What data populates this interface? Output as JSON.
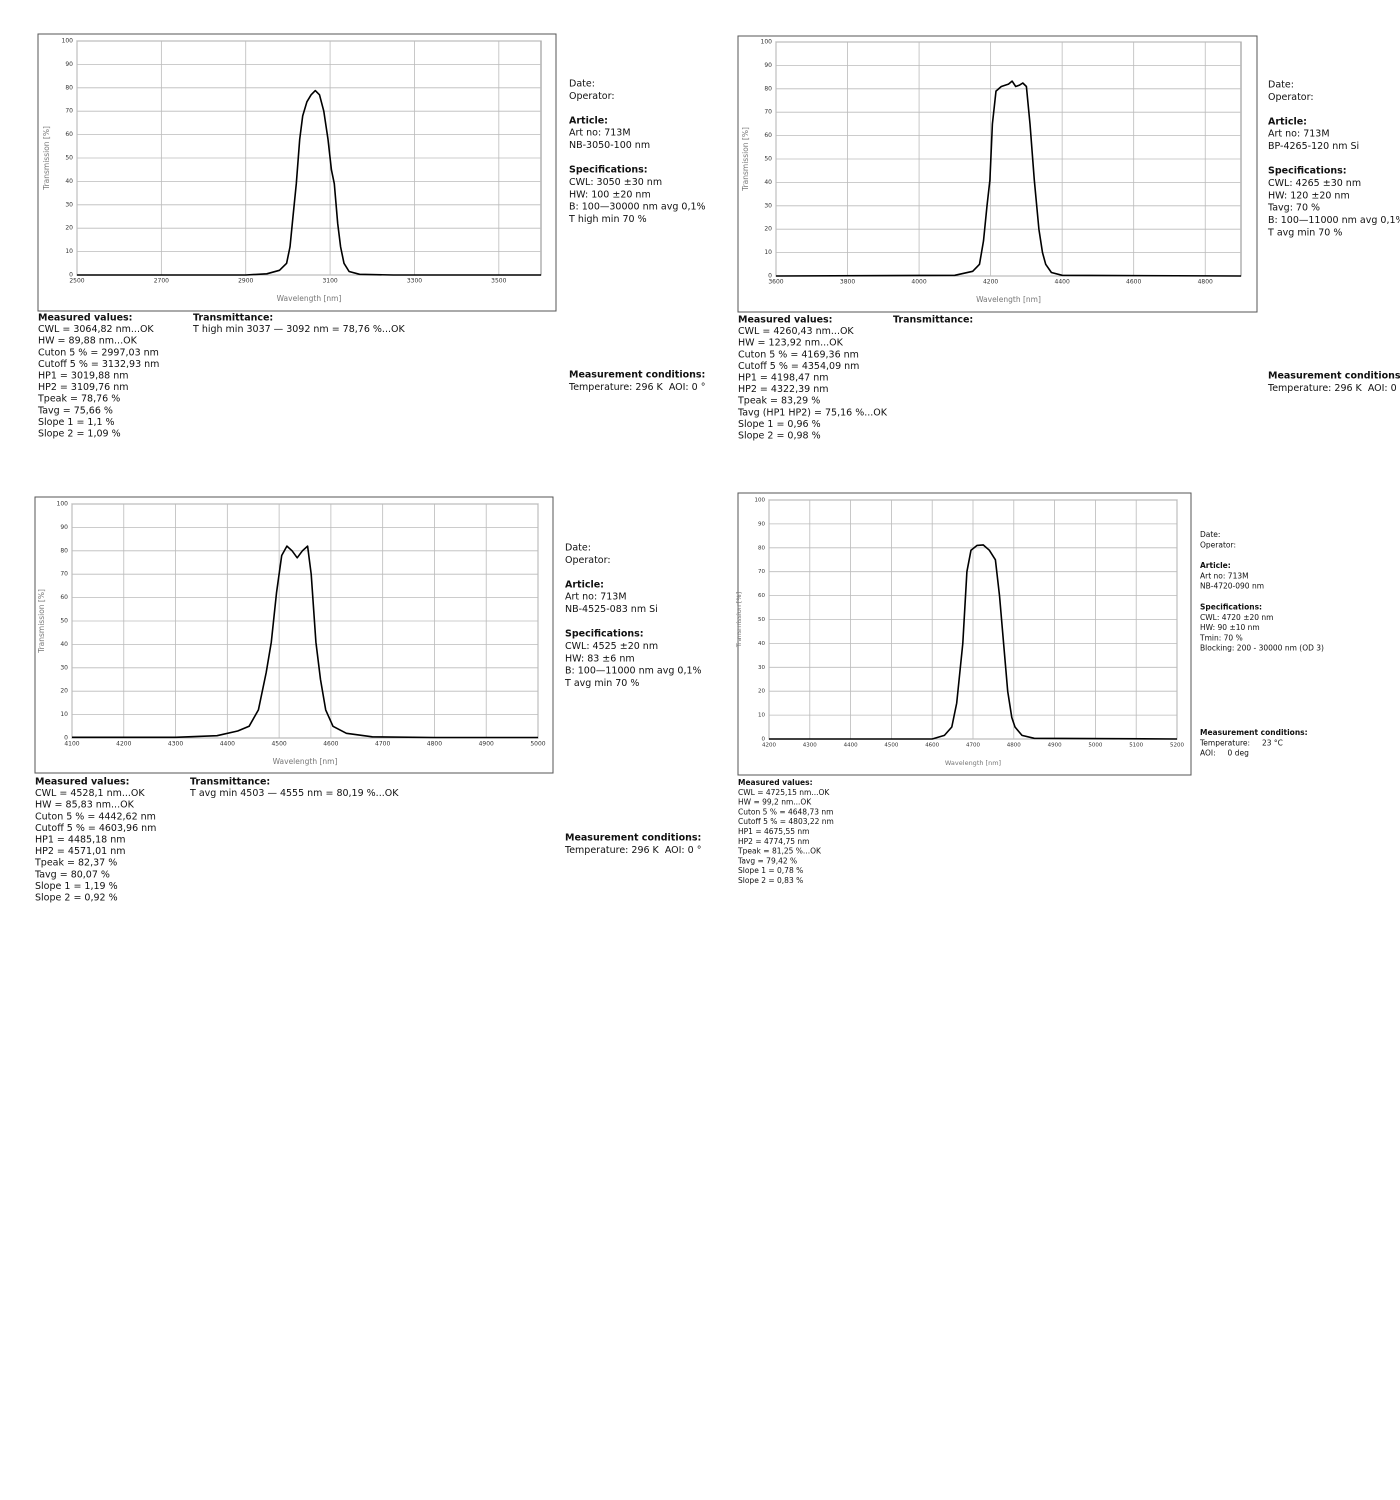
{
  "chart_data": [
    {
      "type": "line",
      "xlabel": "Wavelength [nm]",
      "ylabel": "Transmission [%]",
      "x": [
        2500,
        2900,
        2950,
        2980,
        2997,
        3005,
        3012,
        3020,
        3028,
        3035,
        3045,
        3055,
        3065,
        3075,
        3085,
        3095,
        3103,
        3110,
        3118,
        3125,
        3133,
        3145,
        3170,
        3250,
        3600
      ],
      "values": [
        0,
        0,
        0.5,
        2,
        5,
        12,
        25,
        39,
        58,
        68,
        74,
        77,
        78.8,
        77,
        70,
        58,
        45,
        39,
        22,
        12,
        5,
        1.5,
        0.3,
        0,
        0
      ],
      "color": "#000000",
      "xlim": [
        2500,
        3600
      ],
      "xticks": [
        2500,
        2700,
        2900,
        3100,
        3300,
        3500
      ],
      "ylim": [
        0,
        100
      ],
      "yticks": [
        0,
        10,
        20,
        30,
        40,
        50,
        60,
        70,
        80,
        90,
        100
      ],
      "grid": true
    },
    {
      "type": "line",
      "xlabel": "Wavelength [nm]",
      "ylabel": "Transmission [%]",
      "x": [
        3600,
        4100,
        4150,
        4169,
        4180,
        4190,
        4198,
        4205,
        4215,
        4230,
        4250,
        4260,
        4270,
        4280,
        4290,
        4300,
        4310,
        4322,
        4335,
        4345,
        4354,
        4370,
        4400,
        4900
      ],
      "values": [
        0,
        0.3,
        2,
        5,
        15,
        30,
        41,
        65,
        79,
        81,
        82,
        83.3,
        81,
        81.5,
        82.5,
        81,
        65,
        41,
        20,
        10,
        5,
        1.5,
        0.3,
        0
      ],
      "color": "#000000",
      "xlim": [
        3600,
        4900
      ],
      "xticks": [
        3600,
        3800,
        4000,
        4200,
        4400,
        4600,
        4800
      ],
      "ylim": [
        0,
        100
      ],
      "yticks": [
        0,
        10,
        20,
        30,
        40,
        50,
        60,
        70,
        80,
        90,
        100
      ],
      "grid": true
    },
    {
      "type": "line",
      "xlabel": "Wavelength [nm]",
      "ylabel": "Transmission [%]",
      "x": [
        4100,
        4300,
        4380,
        4420,
        4442,
        4460,
        4475,
        4485,
        4495,
        4505,
        4515,
        4525,
        4535,
        4545,
        4555,
        4562,
        4571,
        4580,
        4590,
        4604,
        4630,
        4680,
        4800,
        5000
      ],
      "values": [
        0.3,
        0.3,
        1,
        3,
        5,
        12,
        28,
        41,
        62,
        78,
        82,
        80,
        77,
        80,
        82,
        70,
        41,
        25,
        12,
        5,
        2,
        0.5,
        0.2,
        0.2
      ],
      "color": "#000000",
      "xlim": [
        4100,
        5000
      ],
      "xticks": [
        4100,
        4200,
        4300,
        4400,
        4500,
        4600,
        4700,
        4800,
        4900,
        5000
      ],
      "ylim": [
        0,
        100
      ],
      "yticks": [
        0,
        10,
        20,
        30,
        40,
        50,
        60,
        70,
        80,
        90,
        100
      ],
      "grid": true
    },
    {
      "type": "line",
      "xlabel": "Wavelength [nm]",
      "ylabel": "Transmission [%]",
      "x": [
        4200,
        4600,
        4630,
        4648,
        4660,
        4675,
        4685,
        4695,
        4710,
        4725,
        4740,
        4755,
        4765,
        4775,
        4785,
        4795,
        4803,
        4820,
        4850,
        5200
      ],
      "values": [
        0,
        0,
        1.5,
        5,
        15,
        40,
        70,
        79,
        81,
        81.2,
        79,
        75,
        60,
        40,
        20,
        9,
        5,
        1.5,
        0.3,
        0
      ],
      "color": "#000000",
      "xlim": [
        4200,
        5200
      ],
      "xticks": [
        4200,
        4300,
        4400,
        4500,
        4600,
        4700,
        4800,
        4900,
        5000,
        5100,
        5200
      ],
      "ylim": [
        0,
        100
      ],
      "yticks": [
        0,
        10,
        20,
        30,
        40,
        50,
        60,
        70,
        80,
        90,
        100
      ],
      "grid": true
    }
  ],
  "reports": [
    {
      "header": [
        "Date:",
        "Operator:"
      ],
      "article_title": "Article:",
      "article": [
        "Art no: 713M",
        "NB-3050-100 nm"
      ],
      "spec_title": "Specifications:",
      "specs": [
        "CWL: 3050 ±30 nm",
        "HW: 100 ±20 nm",
        "B: 100—30000 nm avg 0,1%",
        "T high min 70 %"
      ],
      "conditions_title": "Measurement conditions:",
      "conditions": [
        "Temperature: 296 K  AOI: 0 °"
      ],
      "measured_title": "Measured values:",
      "measured": [
        "CWL = 3064,82 nm...OK",
        "HW = 89,88 nm...OK",
        "Cuton 5 % = 2997,03 nm",
        "Cutoff 5 % = 3132,93 nm",
        "HP1 = 3019,88 nm",
        "HP2 = 3109,76 nm",
        "Tpeak = 78,76 %",
        "Tavg = 75,66 %",
        "Slope 1 = 1,1 %",
        "Slope 2 = 1,09 %"
      ],
      "transmittance_title": "Transmittance:",
      "transmittance": [
        "T high min 3037 — 3092 nm = 78,76 %...OK"
      ]
    },
    {
      "header": [
        "Date:",
        "Operator:"
      ],
      "article_title": "Article:",
      "article": [
        "Art no: 713M",
        "BP-4265-120 nm Si"
      ],
      "spec_title": "Specifications:",
      "specs": [
        "CWL: 4265 ±30 nm",
        "HW: 120 ±20 nm",
        "Tavg: 70 %",
        "B: 100—11000 nm avg 0,1%",
        "T avg min 70 %"
      ],
      "conditions_title": "Measurement conditions:",
      "conditions": [
        "Temperature: 296 K  AOI: 0 °"
      ],
      "measured_title": "Measured values:",
      "measured": [
        "CWL = 4260,43 nm...OK",
        "HW = 123,92 nm...OK",
        "Cuton 5 % = 4169,36 nm",
        "Cutoff 5 % = 4354,09 nm",
        "HP1 = 4198,47 nm",
        "HP2 = 4322,39 nm",
        "Tpeak = 83,29 %",
        "Tavg (HP1 HP2) = 75,16 %...OK",
        "Slope 1 = 0,96 %",
        "Slope 2 = 0,98 %"
      ],
      "transmittance_title": "Transmittance:",
      "transmittance": []
    },
    {
      "header": [
        "Date:",
        "Operator:"
      ],
      "article_title": "Article:",
      "article": [
        "Art no: 713M",
        "NB-4525-083 nm Si"
      ],
      "spec_title": "Specifications:",
      "specs": [
        "CWL: 4525 ±20 nm",
        "HW: 83 ±6 nm",
        "B: 100—11000 nm avg 0,1%",
        "T avg min 70 %"
      ],
      "conditions_title": "Measurement conditions:",
      "conditions": [
        "Temperature: 296 K  AOI: 0 °"
      ],
      "measured_title": "Measured values:",
      "measured": [
        "CWL = 4528,1 nm...OK",
        "HW = 85,83 nm...OK",
        "Cuton 5 % = 4442,62 nm",
        "Cutoff 5 % = 4603,96 nm",
        "HP1 = 4485,18 nm",
        "HP2 = 4571,01 nm",
        "Tpeak = 82,37 %",
        "Tavg = 80,07 %",
        "Slope 1 = 1,19 %",
        "Slope 2 = 0,92 %"
      ],
      "transmittance_title": "Transmittance:",
      "transmittance": [
        "T avg min 4503 — 4555 nm = 80,19 %...OK"
      ]
    },
    {
      "header": [
        "Date:",
        "Operator:"
      ],
      "article_title": "Article:",
      "article": [
        "Art no: 713M",
        "NB-4720-090 nm"
      ],
      "spec_title": "Specifications:",
      "specs": [
        "CWL: 4720 ±20 nm",
        "HW: 90 ±10 nm",
        "Tmin: 70 %",
        "Blocking: 200 - 30000 nm (OD 3)"
      ],
      "conditions_title": "Measurement conditions:",
      "conditions": [
        "Temperature:     23 °C",
        "AOI:     0 deg"
      ],
      "measured_title": "Measured values:",
      "measured": [
        "CWL = 4725,15 nm...OK",
        "HW = 99,2 nm...OK",
        "Cuton 5 % = 4648,73 nm",
        "Cutoff 5 % = 4803,22 nm",
        "HP1 = 4675,55 nm",
        "HP2 = 4774,75 nm",
        "Tpeak = 81,25 %...OK",
        "Tavg = 79,42 %",
        "Slope 1 = 0,78 %",
        "Slope 2 = 0,83 %"
      ]
    }
  ]
}
